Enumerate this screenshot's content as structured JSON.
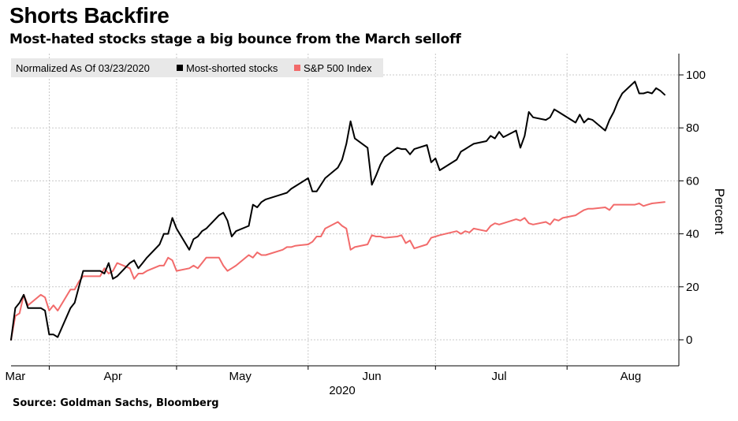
{
  "header": {
    "title": "Shorts Backfire",
    "subtitle": "Most-hated stocks stage a big bounce from the March selloff"
  },
  "legend": {
    "normalized_label": "Normalized As Of 03/23/2020",
    "items": [
      {
        "label": "Most-shorted stocks",
        "color": "#000000"
      },
      {
        "label": "S&P 500 Index",
        "color": "#f26b6b"
      }
    ]
  },
  "source": "Source: Goldman Sachs, Bloomberg",
  "chart_data": {
    "type": "line",
    "ylabel": "Percent",
    "year_label": "2020",
    "ylim": [
      -10,
      107
    ],
    "yticks": [
      0,
      20,
      40,
      60,
      80,
      100
    ],
    "x_start": "2020-03-23",
    "x_end": "2020-08-24",
    "month_labels": [
      {
        "label": "Mar",
        "date": "2020-03-24"
      },
      {
        "label": "Apr",
        "date": "2020-04-16"
      },
      {
        "label": "May",
        "date": "2020-05-16"
      },
      {
        "label": "Jun",
        "date": "2020-06-16"
      },
      {
        "label": "Jul",
        "date": "2020-07-16"
      },
      {
        "label": "Aug",
        "date": "2020-08-16"
      }
    ],
    "month_boundaries": [
      "2020-04-01",
      "2020-05-01",
      "2020-06-01",
      "2020-07-01",
      "2020-08-01"
    ],
    "grid": true,
    "legend_position": "top-left",
    "series": [
      {
        "name": "Most-shorted stocks",
        "color": "#000000",
        "points": [
          [
            "2020-03-23",
            0
          ],
          [
            "2020-03-24",
            12
          ],
          [
            "2020-03-25",
            14
          ],
          [
            "2020-03-26",
            17
          ],
          [
            "2020-03-27",
            12
          ],
          [
            "2020-03-30",
            12
          ],
          [
            "2020-03-31",
            11
          ],
          [
            "2020-04-01",
            2
          ],
          [
            "2020-04-02",
            2
          ],
          [
            "2020-04-03",
            1
          ],
          [
            "2020-04-06",
            12
          ],
          [
            "2020-04-07",
            14
          ],
          [
            "2020-04-08",
            20
          ],
          [
            "2020-04-09",
            26
          ],
          [
            "2020-04-13",
            26
          ],
          [
            "2020-04-14",
            25
          ],
          [
            "2020-04-15",
            29
          ],
          [
            "2020-04-16",
            23
          ],
          [
            "2020-04-17",
            24
          ],
          [
            "2020-04-20",
            29
          ],
          [
            "2020-04-21",
            30
          ],
          [
            "2020-04-22",
            27
          ],
          [
            "2020-04-23",
            29
          ],
          [
            "2020-04-24",
            31
          ],
          [
            "2020-04-27",
            36
          ],
          [
            "2020-04-28",
            40
          ],
          [
            "2020-04-29",
            40
          ],
          [
            "2020-04-30",
            46
          ],
          [
            "2020-05-01",
            42
          ],
          [
            "2020-05-04",
            34
          ],
          [
            "2020-05-05",
            38
          ],
          [
            "2020-05-06",
            39
          ],
          [
            "2020-05-07",
            41
          ],
          [
            "2020-05-08",
            42
          ],
          [
            "2020-05-11",
            47
          ],
          [
            "2020-05-12",
            48
          ],
          [
            "2020-05-13",
            45
          ],
          [
            "2020-05-14",
            39
          ],
          [
            "2020-05-15",
            41
          ],
          [
            "2020-05-18",
            43
          ],
          [
            "2020-05-19",
            51
          ],
          [
            "2020-05-20",
            50
          ],
          [
            "2020-05-21",
            52
          ],
          [
            "2020-05-22",
            53
          ],
          [
            "2020-05-26",
            55
          ],
          [
            "2020-05-27",
            55.5
          ],
          [
            "2020-05-28",
            57
          ],
          [
            "2020-05-29",
            58
          ],
          [
            "2020-06-01",
            61
          ],
          [
            "2020-06-02",
            56
          ],
          [
            "2020-06-03",
            56
          ],
          [
            "2020-06-04",
            58.5
          ],
          [
            "2020-06-05",
            61
          ],
          [
            "2020-06-08",
            65
          ],
          [
            "2020-06-09",
            68
          ],
          [
            "2020-06-10",
            74
          ],
          [
            "2020-06-11",
            82.5
          ],
          [
            "2020-06-12",
            76
          ],
          [
            "2020-06-15",
            72.5
          ],
          [
            "2020-06-16",
            58.5
          ],
          [
            "2020-06-17",
            62
          ],
          [
            "2020-06-18",
            66
          ],
          [
            "2020-06-19",
            69
          ],
          [
            "2020-06-22",
            72.5
          ],
          [
            "2020-06-23",
            72
          ],
          [
            "2020-06-24",
            72
          ],
          [
            "2020-06-25",
            70
          ],
          [
            "2020-06-26",
            72
          ],
          [
            "2020-06-29",
            73.5
          ],
          [
            "2020-06-30",
            67
          ],
          [
            "2020-07-01",
            68.5
          ],
          [
            "2020-07-02",
            64
          ],
          [
            "2020-07-06",
            68
          ],
          [
            "2020-07-07",
            71
          ],
          [
            "2020-07-08",
            72
          ],
          [
            "2020-07-09",
            73
          ],
          [
            "2020-07-10",
            74
          ],
          [
            "2020-07-13",
            75
          ],
          [
            "2020-07-14",
            77
          ],
          [
            "2020-07-15",
            76
          ],
          [
            "2020-07-16",
            78.5
          ],
          [
            "2020-07-17",
            76.5
          ],
          [
            "2020-07-20",
            79
          ],
          [
            "2020-07-21",
            72.5
          ],
          [
            "2020-07-22",
            77
          ],
          [
            "2020-07-23",
            86
          ],
          [
            "2020-07-24",
            84
          ],
          [
            "2020-07-27",
            83
          ],
          [
            "2020-07-28",
            84
          ],
          [
            "2020-07-29",
            87
          ],
          [
            "2020-07-30",
            86
          ],
          [
            "2020-07-31",
            85
          ],
          [
            "2020-08-03",
            82
          ],
          [
            "2020-08-04",
            85
          ],
          [
            "2020-08-05",
            82
          ],
          [
            "2020-08-06",
            83.5
          ],
          [
            "2020-08-07",
            83
          ],
          [
            "2020-08-10",
            79
          ],
          [
            "2020-08-11",
            83
          ],
          [
            "2020-08-12",
            86
          ],
          [
            "2020-08-13",
            90
          ],
          [
            "2020-08-14",
            93
          ],
          [
            "2020-08-17",
            97.5
          ],
          [
            "2020-08-18",
            93
          ],
          [
            "2020-08-19",
            93
          ],
          [
            "2020-08-20",
            93.5
          ],
          [
            "2020-08-21",
            93
          ],
          [
            "2020-08-22",
            95
          ],
          [
            "2020-08-23",
            94
          ],
          [
            "2020-08-24",
            92.5
          ]
        ]
      },
      {
        "name": "S&P 500 Index",
        "color": "#f26b6b",
        "points": [
          [
            "2020-03-23",
            0
          ],
          [
            "2020-03-24",
            9
          ],
          [
            "2020-03-25",
            10
          ],
          [
            "2020-03-26",
            17
          ],
          [
            "2020-03-27",
            13
          ],
          [
            "2020-03-30",
            17
          ],
          [
            "2020-03-31",
            16
          ],
          [
            "2020-04-01",
            11
          ],
          [
            "2020-04-02",
            13
          ],
          [
            "2020-04-03",
            11
          ],
          [
            "2020-04-06",
            19
          ],
          [
            "2020-04-07",
            19
          ],
          [
            "2020-04-08",
            22
          ],
          [
            "2020-04-09",
            24
          ],
          [
            "2020-04-13",
            24
          ],
          [
            "2020-04-14",
            27
          ],
          [
            "2020-04-15",
            25
          ],
          [
            "2020-04-16",
            26
          ],
          [
            "2020-04-17",
            29
          ],
          [
            "2020-04-20",
            27
          ],
          [
            "2020-04-21",
            23
          ],
          [
            "2020-04-22",
            25
          ],
          [
            "2020-04-23",
            25
          ],
          [
            "2020-04-24",
            26
          ],
          [
            "2020-04-27",
            28
          ],
          [
            "2020-04-28",
            28
          ],
          [
            "2020-04-29",
            31
          ],
          [
            "2020-04-30",
            30
          ],
          [
            "2020-05-01",
            26
          ],
          [
            "2020-05-04",
            27
          ],
          [
            "2020-05-05",
            28
          ],
          [
            "2020-05-06",
            27
          ],
          [
            "2020-05-07",
            29
          ],
          [
            "2020-05-08",
            31
          ],
          [
            "2020-05-11",
            31
          ],
          [
            "2020-05-12",
            28
          ],
          [
            "2020-05-13",
            26
          ],
          [
            "2020-05-14",
            27
          ],
          [
            "2020-05-15",
            28
          ],
          [
            "2020-05-18",
            32
          ],
          [
            "2020-05-19",
            31
          ],
          [
            "2020-05-20",
            33
          ],
          [
            "2020-05-21",
            32
          ],
          [
            "2020-05-22",
            32
          ],
          [
            "2020-05-26",
            34
          ],
          [
            "2020-05-27",
            35
          ],
          [
            "2020-05-28",
            35
          ],
          [
            "2020-05-29",
            35.5
          ],
          [
            "2020-06-01",
            36
          ],
          [
            "2020-06-02",
            37
          ],
          [
            "2020-06-03",
            39
          ],
          [
            "2020-06-04",
            39
          ],
          [
            "2020-06-05",
            42
          ],
          [
            "2020-06-08",
            44.5
          ],
          [
            "2020-06-09",
            43
          ],
          [
            "2020-06-10",
            42
          ],
          [
            "2020-06-11",
            34
          ],
          [
            "2020-06-12",
            35
          ],
          [
            "2020-06-15",
            36
          ],
          [
            "2020-06-16",
            39.5
          ],
          [
            "2020-06-17",
            39
          ],
          [
            "2020-06-18",
            39
          ],
          [
            "2020-06-19",
            38.5
          ],
          [
            "2020-06-22",
            39
          ],
          [
            "2020-06-23",
            39.5
          ],
          [
            "2020-06-24",
            36.5
          ],
          [
            "2020-06-25",
            37.5
          ],
          [
            "2020-06-26",
            34.5
          ],
          [
            "2020-06-29",
            36
          ],
          [
            "2020-06-30",
            38.5
          ],
          [
            "2020-07-01",
            39
          ],
          [
            "2020-07-02",
            39.5
          ],
          [
            "2020-07-06",
            41
          ],
          [
            "2020-07-07",
            40
          ],
          [
            "2020-07-08",
            41
          ],
          [
            "2020-07-09",
            40.5
          ],
          [
            "2020-07-10",
            42
          ],
          [
            "2020-07-13",
            41
          ],
          [
            "2020-07-14",
            43
          ],
          [
            "2020-07-15",
            44
          ],
          [
            "2020-07-16",
            43.5
          ],
          [
            "2020-07-17",
            44
          ],
          [
            "2020-07-20",
            45.5
          ],
          [
            "2020-07-21",
            45
          ],
          [
            "2020-07-22",
            46
          ],
          [
            "2020-07-23",
            44
          ],
          [
            "2020-07-24",
            43.5
          ],
          [
            "2020-07-27",
            44.5
          ],
          [
            "2020-07-28",
            43.5
          ],
          [
            "2020-07-29",
            45.5
          ],
          [
            "2020-07-30",
            45
          ],
          [
            "2020-07-31",
            46
          ],
          [
            "2020-08-03",
            47
          ],
          [
            "2020-08-04",
            48
          ],
          [
            "2020-08-05",
            49
          ],
          [
            "2020-08-06",
            49.5
          ],
          [
            "2020-08-07",
            49.5
          ],
          [
            "2020-08-10",
            50
          ],
          [
            "2020-08-11",
            49
          ],
          [
            "2020-08-12",
            51
          ],
          [
            "2020-08-13",
            51
          ],
          [
            "2020-08-14",
            51
          ],
          [
            "2020-08-17",
            51
          ],
          [
            "2020-08-18",
            51.5
          ],
          [
            "2020-08-19",
            50.5
          ],
          [
            "2020-08-20",
            51
          ],
          [
            "2020-08-21",
            51.5
          ],
          [
            "2020-08-24",
            52
          ]
        ]
      }
    ]
  }
}
